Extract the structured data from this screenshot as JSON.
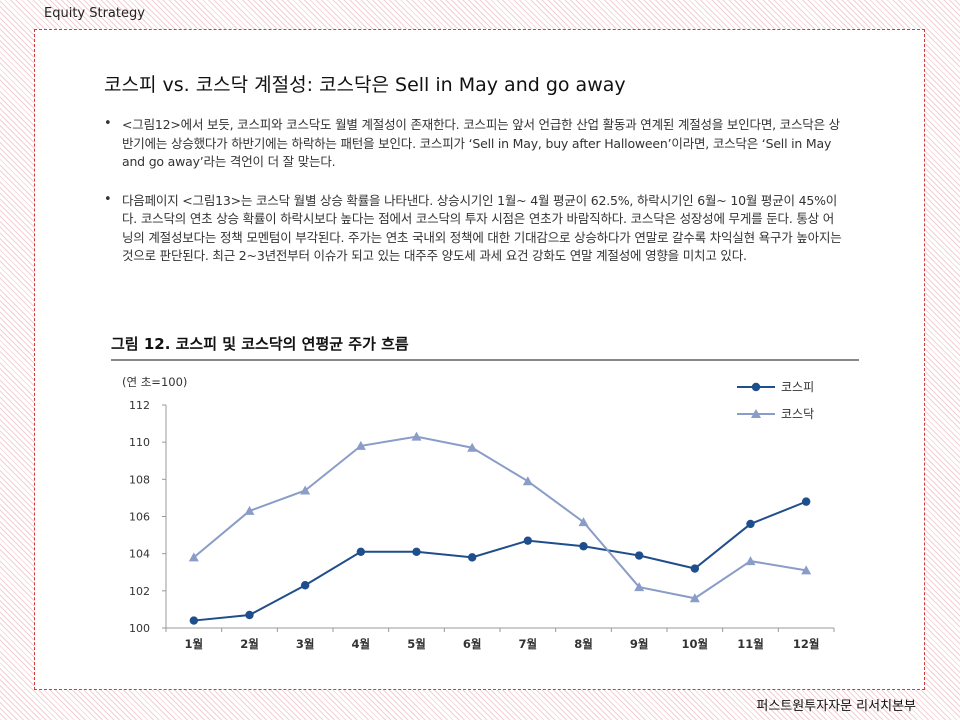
{
  "header": {
    "section_label": "Equity Strategy"
  },
  "title": "코스피 vs. 코스닥 계절성: 코스닥은 Sell in May and go away",
  "bullets": [
    "<그림12>에서 보듯, 코스피와 코스닥도 월별 계절성이 존재한다. 코스피는 앞서 언급한 산업 활동과 연계된 계절성을 보인다면, 코스닥은 상반기에는 상승했다가 하반기에는 하락하는 패턴을 보인다. 코스피가 ‘Sell in May, buy after Halloween’이라면, 코스닥은 ‘Sell in May and go away’라는 격언이 더 잘 맞는다.",
    "다음페이지 <그림13>는 코스닥 월별 상승 확률을 나타낸다. 상승시기인 1월~ 4월 평균이 62.5%, 하락시기인 6월~ 10월 평균이 45%이다. 코스닥의 연초 상승 확률이 하락시보다 높다는 점에서 코스닥의 투자 시점은 연초가 바람직하다. 코스닥은 성장성에 무게를 둔다. 통상 어닝의 계절성보다는 정책 모멘텀이 부각된다. 주가는 연초 국내외 정책에 대한 기대감으로 상승하다가 연말로 갈수록 차익실현 욕구가 높아지는 것으로 판단된다. 최근 2~3년전부터 이슈가 되고 있는 대주주 양도세 과세 요건 강화도 연말 계절성에 영향을 미치고 있다."
  ],
  "figure": {
    "title": "그림 12.  코스피  및  코스닥의  연평균  주가  흐름"
  },
  "footer": {
    "source": "퍼스트원투자자문 리서치본부"
  },
  "colors": {
    "kospi": "#1f4e8c",
    "kosdaq": "#8a9cc8",
    "border": "#d23a3a"
  },
  "chart_data": {
    "type": "line",
    "unit_label": "(연 초=100)",
    "categories": [
      "1월",
      "2월",
      "3월",
      "4월",
      "5월",
      "6월",
      "7월",
      "8월",
      "9월",
      "10월",
      "11월",
      "12월"
    ],
    "series": [
      {
        "name": "코스피",
        "marker": "circle",
        "values": [
          100.4,
          100.7,
          102.3,
          104.1,
          104.1,
          103.8,
          104.7,
          104.4,
          103.9,
          103.2,
          105.6,
          106.8
        ]
      },
      {
        "name": "코스닥",
        "marker": "triangle",
        "values": [
          103.8,
          106.3,
          107.4,
          109.8,
          110.3,
          109.7,
          107.9,
          105.7,
          102.2,
          101.6,
          103.6,
          103.1
        ]
      }
    ],
    "ylim": [
      100,
      112
    ],
    "yticks": [
      100,
      102,
      104,
      106,
      108,
      110,
      112
    ],
    "legend": "top-right",
    "grid": false
  }
}
